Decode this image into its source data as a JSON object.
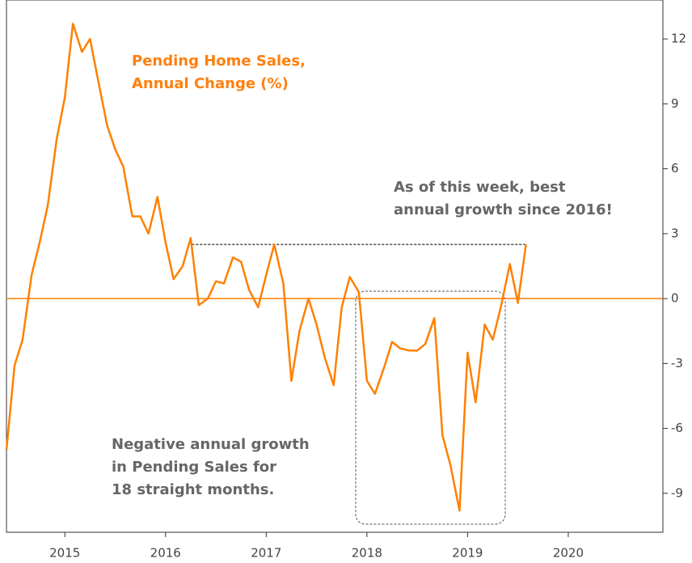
{
  "chart_data": {
    "type": "line",
    "annotations": [
      {
        "lines": [
          "Pending Home Sales,",
          "Annual Change (%)"
        ],
        "color": "#ff7f0e"
      },
      {
        "lines": [
          "As of this week, best",
          "annual growth since 2016!"
        ],
        "color": "#666666"
      },
      {
        "lines": [
          "Negative annual growth",
          "in Pending Sales for",
          "18 straight months."
        ],
        "color": "#666666"
      }
    ],
    "x": [
      2014.42,
      2014.5,
      2014.58,
      2014.67,
      2014.75,
      2014.83,
      2014.92,
      2015,
      2015.08,
      2015.17,
      2015.25,
      2015.33,
      2015.42,
      2015.5,
      2015.58,
      2015.67,
      2015.75,
      2015.83,
      2015.92,
      2016,
      2016.08,
      2016.17,
      2016.25,
      2016.33,
      2016.42,
      2016.5,
      2016.58,
      2016.67,
      2016.75,
      2016.83,
      2016.92,
      2017,
      2017.08,
      2017.17,
      2017.25,
      2017.33,
      2017.42,
      2017.5,
      2017.58,
      2017.67,
      2017.75,
      2017.83,
      2017.92,
      2018,
      2018.08,
      2018.17,
      2018.25,
      2018.33,
      2018.42,
      2018.5,
      2018.58,
      2018.67,
      2018.75,
      2018.83,
      2018.92,
      2019,
      2019.08,
      2019.17,
      2019.25,
      2019.33,
      2019.42,
      2019.5,
      2019.58
    ],
    "series": [
      {
        "name": "Pending Home Sales, Annual Change (%)",
        "color": "#ff8000",
        "values": [
          -7.0,
          -3.1,
          -1.9,
          1.1,
          2.6,
          4.3,
          7.4,
          9.3,
          12.7,
          11.4,
          12.0,
          10.1,
          8.0,
          6.9,
          6.1,
          3.8,
          3.8,
          3.0,
          4.7,
          2.6,
          0.9,
          1.5,
          2.8,
          -0.3,
          0,
          0.8,
          0.7,
          1.9,
          1.7,
          0.4,
          -0.4,
          1.1,
          2.5,
          0.7,
          -3.8,
          -1.5,
          0,
          -1.2,
          -2.7,
          -4.0,
          -0.4,
          1.0,
          0.3,
          -3.8,
          -4.4,
          -3.2,
          -2.0,
          -2.3,
          -2.4,
          -2.4,
          -2.1,
          -0.9,
          -6.3,
          -7.7,
          -9.8,
          -2.5,
          -4.8,
          -1.2,
          -1.9,
          -0.4,
          1.6,
          -0.2,
          2.5
        ]
      }
    ],
    "xlim": [
      2014.42,
      2020.94
    ],
    "xticks": [
      2015,
      2016,
      2017,
      2018,
      2019,
      2020
    ],
    "ylim": [
      -10.8,
      13.8
    ],
    "yticks": [
      -9,
      -6,
      -3,
      0,
      3,
      6,
      9,
      12
    ],
    "y_axis_side": "right",
    "zero_line_color": "#ff8000"
  }
}
